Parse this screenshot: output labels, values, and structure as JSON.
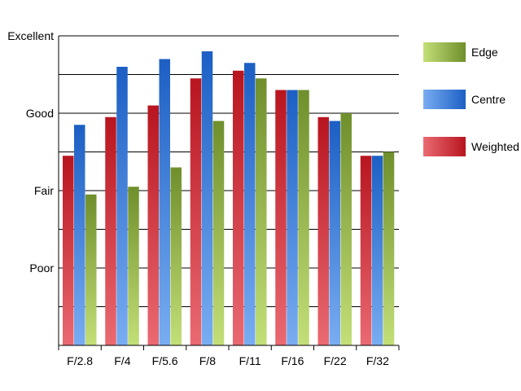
{
  "chart_data": {
    "type": "bar",
    "categories": [
      "F/2.8",
      "F/4",
      "F/5.6",
      "F/8",
      "F/11",
      "F/16",
      "F/22",
      "F/32"
    ],
    "series": [
      {
        "name": "Weighted",
        "values": [
          4.9,
          5.9,
          6.2,
          6.9,
          7.1,
          6.6,
          5.9,
          4.9
        ]
      },
      {
        "name": "Centre",
        "values": [
          5.7,
          7.2,
          7.4,
          7.6,
          7.3,
          6.6,
          5.8,
          4.9
        ]
      },
      {
        "name": "Edge",
        "values": [
          3.9,
          4.1,
          4.6,
          5.8,
          6.9,
          6.6,
          6.0,
          5.0
        ]
      }
    ],
    "ylim": [
      0,
      8
    ],
    "y_tick_labels": [
      {
        "value": 2,
        "label": "Poor"
      },
      {
        "value": 4,
        "label": "Fair"
      },
      {
        "value": 6,
        "label": "Good"
      },
      {
        "value": 8,
        "label": "Excellent"
      }
    ],
    "gridlines": [
      1,
      2,
      3,
      4,
      5,
      6,
      7,
      8
    ],
    "grid": true,
    "legend_position": "right",
    "legend_order": [
      "Edge",
      "Centre",
      "Weighted"
    ],
    "colors": {
      "Weighted": {
        "dark": "#b8151f",
        "light": "#ea6a72"
      },
      "Centre": {
        "dark": "#1c5fc4",
        "light": "#79adf2"
      },
      "Edge": {
        "dark": "#6f8f2c",
        "light": "#c3df78"
      }
    }
  }
}
